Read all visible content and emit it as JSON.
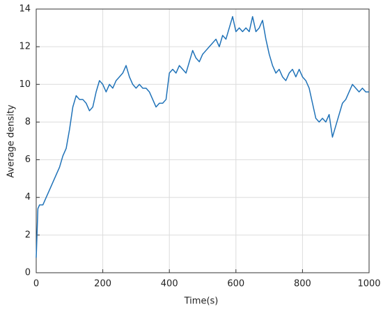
{
  "chart_data": {
    "type": "line",
    "xlabel": "Time(s)",
    "ylabel": "Average density",
    "x": [
      0,
      5,
      10,
      20,
      30,
      40,
      50,
      60,
      70,
      80,
      90,
      100,
      110,
      120,
      130,
      140,
      150,
      160,
      170,
      180,
      190,
      200,
      210,
      220,
      230,
      240,
      250,
      260,
      270,
      280,
      290,
      300,
      310,
      320,
      330,
      340,
      350,
      360,
      370,
      380,
      390,
      400,
      410,
      420,
      430,
      440,
      450,
      460,
      470,
      480,
      490,
      500,
      510,
      520,
      530,
      540,
      550,
      560,
      570,
      580,
      590,
      600,
      610,
      620,
      630,
      640,
      650,
      660,
      670,
      680,
      690,
      700,
      710,
      720,
      730,
      740,
      750,
      760,
      770,
      780,
      790,
      800,
      810,
      820,
      830,
      840,
      850,
      860,
      870,
      880,
      890,
      900,
      910,
      920,
      930,
      940,
      950,
      960,
      970,
      980,
      990,
      1000
    ],
    "series": [
      {
        "name": "Average density",
        "color": "#1f72b8",
        "values": [
          0.8,
          3.4,
          3.6,
          3.6,
          4.0,
          4.4,
          4.8,
          5.2,
          5.6,
          6.2,
          6.6,
          7.6,
          8.8,
          9.4,
          9.2,
          9.2,
          9.0,
          8.6,
          8.8,
          9.6,
          10.2,
          10.0,
          9.6,
          10.0,
          9.8,
          10.2,
          10.4,
          10.6,
          11.0,
          10.4,
          10.0,
          9.8,
          10.0,
          9.8,
          9.8,
          9.6,
          9.2,
          8.8,
          9.0,
          9.0,
          9.2,
          10.6,
          10.8,
          10.6,
          11.0,
          10.8,
          10.6,
          11.2,
          11.8,
          11.4,
          11.2,
          11.6,
          11.8,
          12.0,
          12.2,
          12.4,
          12.0,
          12.6,
          12.4,
          13.0,
          13.6,
          12.8,
          13.0,
          12.8,
          13.0,
          12.8,
          13.6,
          12.8,
          13.0,
          13.4,
          12.4,
          11.6,
          11.0,
          10.6,
          10.8,
          10.4,
          10.2,
          10.6,
          10.8,
          10.4,
          10.8,
          10.4,
          10.2,
          9.8,
          9.0,
          8.2,
          8.0,
          8.2,
          8.0,
          8.4,
          7.2,
          7.8,
          8.4,
          9.0,
          9.2,
          9.6,
          10.0,
          9.8,
          9.6,
          9.8,
          9.6,
          9.6
        ]
      }
    ],
    "xlim": [
      0,
      1000
    ],
    "xticks": [
      0,
      200,
      400,
      600,
      800,
      1000
    ],
    "ylim": [
      0,
      14
    ],
    "yticks": [
      0,
      2,
      4,
      6,
      8,
      10,
      12,
      14
    ],
    "grid": true
  }
}
